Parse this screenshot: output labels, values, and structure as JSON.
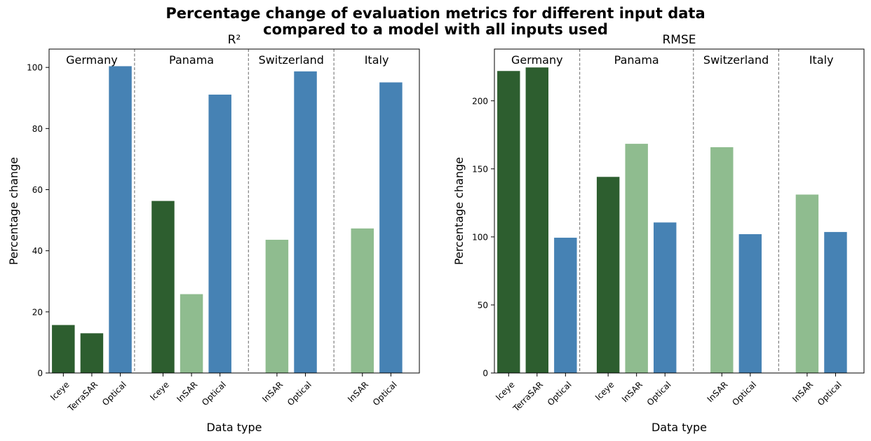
{
  "figure": {
    "title_line1": "Percentage change of evaluation metrics for different input data",
    "title_line2": "compared to a model with all inputs used"
  },
  "colors": {
    "Iceye": "#2d5e2f",
    "TerraSAR": "#2d5e2f",
    "InSAR": "#8fbc8f",
    "Optical": "#4682b4"
  },
  "chart_data": [
    {
      "type": "bar",
      "title": "R²",
      "xlabel": "Data type",
      "ylabel": "Percentage change",
      "ylim": [
        0,
        106
      ],
      "yticks": [
        0,
        20,
        40,
        60,
        80,
        100
      ],
      "grid": false,
      "groups": [
        {
          "name": "Germany",
          "categories": [
            "Iceye",
            "TerraSAR",
            "Optical"
          ],
          "values": [
            15.7,
            13.0,
            100.4
          ]
        },
        {
          "name": "Panama",
          "categories": [
            "Iceye",
            "InSAR",
            "Optical"
          ],
          "values": [
            56.3,
            25.8,
            91.1
          ]
        },
        {
          "name": "Switzerland",
          "categories": [
            "InSAR",
            "Optical"
          ],
          "values": [
            43.6,
            98.7
          ]
        },
        {
          "name": "Italy",
          "categories": [
            "InSAR",
            "Optical"
          ],
          "values": [
            47.3,
            95.1
          ]
        }
      ]
    },
    {
      "type": "bar",
      "title": "RMSE",
      "xlabel": "Data type",
      "ylabel": "Percentage change",
      "ylim": [
        0,
        238
      ],
      "yticks": [
        0,
        50,
        100,
        150,
        200
      ],
      "grid": false,
      "groups": [
        {
          "name": "Germany",
          "categories": [
            "Iceye",
            "TerraSAR",
            "Optical"
          ],
          "values": [
            221.9,
            224.5,
            99.4
          ]
        },
        {
          "name": "Panama",
          "categories": [
            "Iceye",
            "InSAR",
            "Optical"
          ],
          "values": [
            144.1,
            168.4,
            110.6
          ]
        },
        {
          "name": "Switzerland",
          "categories": [
            "InSAR",
            "Optical"
          ],
          "values": [
            165.9,
            102.0
          ]
        },
        {
          "name": "Italy",
          "categories": [
            "InSAR",
            "Optical"
          ],
          "values": [
            131.1,
            103.6
          ]
        }
      ]
    }
  ]
}
